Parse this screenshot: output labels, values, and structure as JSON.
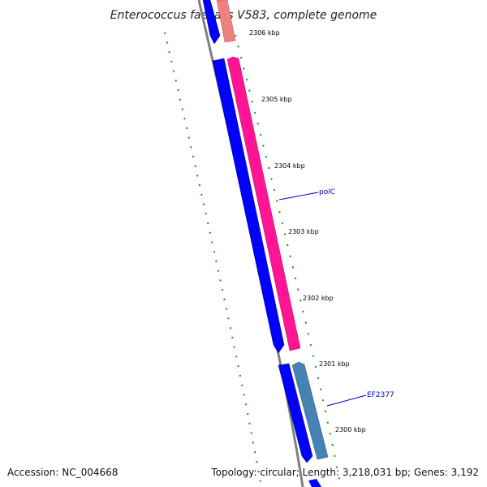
{
  "title": "Enterococcus faecalis V583, complete genome",
  "footer": {
    "accession": "Accession: NC_004668",
    "summary": "Topology: circular; Length: 3,218,031 bp; Genes: 3,192"
  },
  "colors": {
    "backbone": "#808080",
    "forward_gene": "#0000ff",
    "reverse_gene_pink": "#ff1493",
    "reverse_gene_salmon": "#f08080",
    "reverse_gene_steel": "#4682b4",
    "tick": "#228b22",
    "gene_label": "#0000cc"
  },
  "ticks": [
    "2306 kbp",
    "2305 kbp",
    "2304 kbp",
    "2303 kbp",
    "2302 kbp",
    "2301 kbp",
    "2300 kbp"
  ],
  "gene_labels": [
    "polC",
    "EF2377"
  ]
}
